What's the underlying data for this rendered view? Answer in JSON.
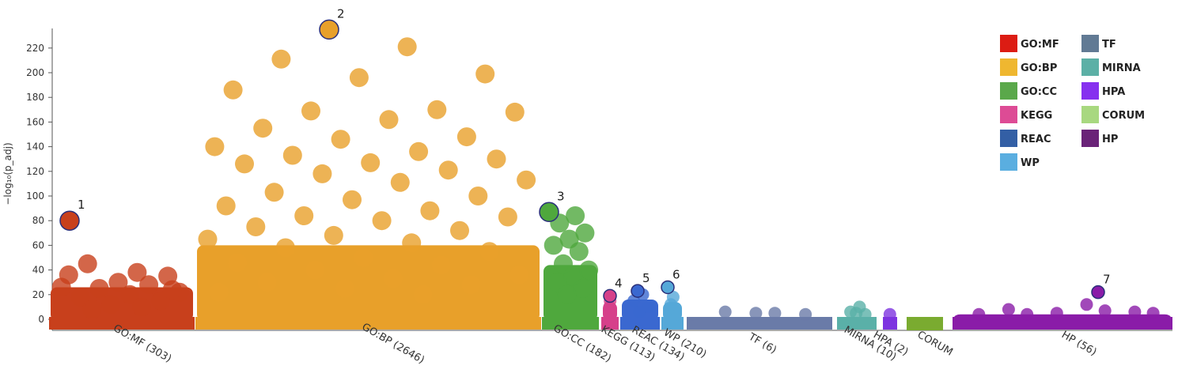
{
  "chart_data": {
    "type": "scatter",
    "title": "",
    "ylabel": "−log₁₀(p_adj)",
    "ylim": [
      0,
      230
    ],
    "yticks": [
      0,
      20,
      40,
      60,
      80,
      100,
      120,
      140,
      160,
      180,
      200,
      220
    ],
    "legend_position": "top-right",
    "grid": false,
    "categories": [
      {
        "key": "GO:MF",
        "label": "GO:MF (303)",
        "color": "#c8401c",
        "legend_color": "#dc1c13"
      },
      {
        "key": "GO:BP",
        "label": "GO:BP (2646)",
        "color": "#e8a02a",
        "legend_color": "#efb730"
      },
      {
        "key": "GO:CC",
        "label": "GO:CC (182)",
        "color": "#4fa83d",
        "legend_color": "#5aa84a"
      },
      {
        "key": "KEGG",
        "label": "KEGG (113)",
        "color": "#d6408a",
        "legend_color": "#dd4b95"
      },
      {
        "key": "REAC",
        "label": "REAC (134)",
        "color": "#3a68d0",
        "legend_color": "#335fa5"
      },
      {
        "key": "WP",
        "label": "WP (210)",
        "color": "#55a8d8",
        "legend_color": "#5aaee0"
      },
      {
        "key": "TF",
        "label": "TF (6)",
        "color": "#6a7ba8",
        "legend_color": "#617a94"
      },
      {
        "key": "MIRNA",
        "label": "MIRNA (10)",
        "color": "#5ab0a8",
        "legend_color": "#5cb0a6"
      },
      {
        "key": "HPA",
        "label": "HPA (2)",
        "color": "#7d33e0",
        "legend_color": "#8630ef"
      },
      {
        "key": "CORUM",
        "label": "CORUM",
        "color": "#7aab30",
        "legend_color": "#a8d880"
      },
      {
        "key": "HP",
        "label": "HP (56)",
        "color": "#8a1ca8",
        "legend_color": "#6a2378"
      }
    ],
    "legend": [
      "GO:MF",
      "GO:BP",
      "GO:CC",
      "KEGG",
      "REAC",
      "WP",
      "TF",
      "MIRNA",
      "HPA",
      "CORUM",
      "HP"
    ],
    "highlighted": [
      {
        "label": "1",
        "category": "GO:MF",
        "y": 80
      },
      {
        "label": "2",
        "category": "GO:BP",
        "y": 235
      },
      {
        "label": "3",
        "category": "GO:CC",
        "y": 87
      },
      {
        "label": "4",
        "category": "KEGG",
        "y": 19
      },
      {
        "label": "5",
        "category": "REAC",
        "y": 23
      },
      {
        "label": "6",
        "category": "WP",
        "y": 26
      },
      {
        "label": "7",
        "category": "HP",
        "y": 22
      }
    ],
    "points": [
      {
        "c": "GO:MF",
        "y": 38
      },
      {
        "c": "GO:MF",
        "y": 45
      },
      {
        "c": "GO:MF",
        "y": 35
      },
      {
        "c": "GO:MF",
        "y": 30
      },
      {
        "c": "GO:MF",
        "y": 36
      },
      {
        "c": "GO:MF",
        "y": 28
      },
      {
        "c": "GO:MF",
        "y": 25
      },
      {
        "c": "GO:MF",
        "y": 22
      },
      {
        "c": "GO:MF",
        "y": 20
      },
      {
        "c": "GO:MF",
        "y": 18
      },
      {
        "c": "GO:MF",
        "y": 15
      },
      {
        "c": "GO:MF",
        "y": 12
      },
      {
        "c": "GO:MF",
        "y": 26
      },
      {
        "c": "GO:MF",
        "y": 10
      },
      {
        "c": "GO:MF",
        "y": 8
      },
      {
        "c": "GO:MF",
        "y": 24
      },
      {
        "c": "GO:BP",
        "y": 221
      },
      {
        "c": "GO:BP",
        "y": 211
      },
      {
        "c": "GO:BP",
        "y": 199
      },
      {
        "c": "GO:BP",
        "y": 196
      },
      {
        "c": "GO:BP",
        "y": 186
      },
      {
        "c": "GO:BP",
        "y": 170
      },
      {
        "c": "GO:BP",
        "y": 169
      },
      {
        "c": "GO:BP",
        "y": 168
      },
      {
        "c": "GO:BP",
        "y": 162
      },
      {
        "c": "GO:BP",
        "y": 155
      },
      {
        "c": "GO:BP",
        "y": 148
      },
      {
        "c": "GO:BP",
        "y": 146
      },
      {
        "c": "GO:BP",
        "y": 140
      },
      {
        "c": "GO:BP",
        "y": 136
      },
      {
        "c": "GO:BP",
        "y": 133
      },
      {
        "c": "GO:BP",
        "y": 130
      },
      {
        "c": "GO:BP",
        "y": 127
      },
      {
        "c": "GO:BP",
        "y": 126
      },
      {
        "c": "GO:BP",
        "y": 121
      },
      {
        "c": "GO:BP",
        "y": 118
      },
      {
        "c": "GO:BP",
        "y": 113
      },
      {
        "c": "GO:BP",
        "y": 111
      },
      {
        "c": "GO:BP",
        "y": 103
      },
      {
        "c": "GO:BP",
        "y": 100
      },
      {
        "c": "GO:BP",
        "y": 97
      },
      {
        "c": "GO:BP",
        "y": 92
      },
      {
        "c": "GO:BP",
        "y": 88
      },
      {
        "c": "GO:BP",
        "y": 84
      },
      {
        "c": "GO:BP",
        "y": 83
      },
      {
        "c": "GO:BP",
        "y": 80
      },
      {
        "c": "GO:BP",
        "y": 75
      },
      {
        "c": "GO:BP",
        "y": 72
      },
      {
        "c": "GO:BP",
        "y": 68
      },
      {
        "c": "GO:BP",
        "y": 65
      },
      {
        "c": "GO:BP",
        "y": 62
      },
      {
        "c": "GO:BP",
        "y": 58
      },
      {
        "c": "GO:BP",
        "y": 55
      },
      {
        "c": "GO:BP",
        "y": 50
      },
      {
        "c": "GO:BP",
        "y": 46
      },
      {
        "c": "GO:BP",
        "y": 44
      },
      {
        "c": "GO:BP",
        "y": 40
      },
      {
        "c": "GO:BP",
        "y": 36
      },
      {
        "c": "GO:BP",
        "y": 33
      },
      {
        "c": "GO:BP",
        "y": 30
      },
      {
        "c": "GO:BP",
        "y": 28
      },
      {
        "c": "GO:BP",
        "y": 25
      },
      {
        "c": "GO:BP",
        "y": 22
      },
      {
        "c": "GO:BP",
        "y": 20
      },
      {
        "c": "GO:CC",
        "y": 84
      },
      {
        "c": "GO:CC",
        "y": 78
      },
      {
        "c": "GO:CC",
        "y": 70
      },
      {
        "c": "GO:CC",
        "y": 65
      },
      {
        "c": "GO:CC",
        "y": 60
      },
      {
        "c": "GO:CC",
        "y": 55
      },
      {
        "c": "GO:CC",
        "y": 45
      },
      {
        "c": "GO:CC",
        "y": 40
      },
      {
        "c": "GO:CC",
        "y": 35
      },
      {
        "c": "GO:CC",
        "y": 30
      },
      {
        "c": "GO:CC",
        "y": 25
      },
      {
        "c": "GO:CC",
        "y": 20
      },
      {
        "c": "KEGG",
        "y": 15
      },
      {
        "c": "KEGG",
        "y": 10
      },
      {
        "c": "KEGG",
        "y": 6
      },
      {
        "c": "REAC",
        "y": 20
      },
      {
        "c": "REAC",
        "y": 15
      },
      {
        "c": "REAC",
        "y": 10
      },
      {
        "c": "REAC",
        "y": 6
      },
      {
        "c": "WP",
        "y": 18
      },
      {
        "c": "WP",
        "y": 12
      },
      {
        "c": "WP",
        "y": 8
      },
      {
        "c": "TF",
        "y": 5
      },
      {
        "c": "TF",
        "y": 6
      },
      {
        "c": "TF",
        "y": 4
      },
      {
        "c": "TF",
        "y": 5
      },
      {
        "c": "MIRNA",
        "y": 10
      },
      {
        "c": "MIRNA",
        "y": 6
      },
      {
        "c": "MIRNA",
        "y": 4
      },
      {
        "c": "MIRNA",
        "y": 5
      },
      {
        "c": "HPA",
        "y": 4
      },
      {
        "c": "HP",
        "y": 12
      },
      {
        "c": "HP",
        "y": 8
      },
      {
        "c": "HP",
        "y": 6
      },
      {
        "c": "HP",
        "y": 5
      },
      {
        "c": "HP",
        "y": 4
      },
      {
        "c": "HP",
        "y": 7
      },
      {
        "c": "HP",
        "y": 4
      },
      {
        "c": "HP",
        "y": 5
      }
    ]
  }
}
